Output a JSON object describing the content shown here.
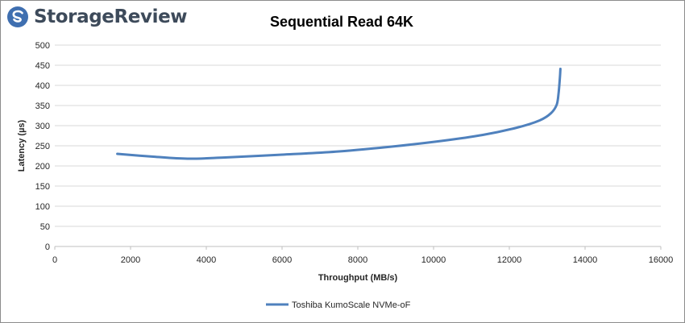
{
  "brand": {
    "logo_text": "StorageReview",
    "logo_icon": "storagereview-logo-icon",
    "colors": {
      "logo_mark": "#3f6fb0",
      "logo_text": "#3d4a5a"
    }
  },
  "chart_data": {
    "type": "line",
    "title": "Sequential Read 64K",
    "xlabel": "Throughput (MB/s)",
    "ylabel": "Latency (µs)",
    "xlim": [
      0,
      16000
    ],
    "ylim": [
      0,
      500
    ],
    "xticks": [
      0,
      2000,
      4000,
      6000,
      8000,
      10000,
      12000,
      14000,
      16000
    ],
    "yticks": [
      0,
      50,
      100,
      150,
      200,
      250,
      300,
      350,
      400,
      450,
      500
    ],
    "grid": {
      "horizontal": true,
      "vertical": false
    },
    "legend_position": "bottom-center",
    "series": [
      {
        "name": "Toshiba KumoScale NVMe-oF",
        "color": "#4f81bd",
        "points": [
          [
            1650,
            230
          ],
          [
            2600,
            223
          ],
          [
            3500,
            218
          ],
          [
            4500,
            221
          ],
          [
            6000,
            228
          ],
          [
            7500,
            236
          ],
          [
            9000,
            249
          ],
          [
            10200,
            262
          ],
          [
            11300,
            277
          ],
          [
            12200,
            295
          ],
          [
            12800,
            313
          ],
          [
            13100,
            331
          ],
          [
            13250,
            352
          ],
          [
            13300,
            380
          ],
          [
            13330,
            412
          ],
          [
            13350,
            441
          ]
        ]
      }
    ]
  }
}
